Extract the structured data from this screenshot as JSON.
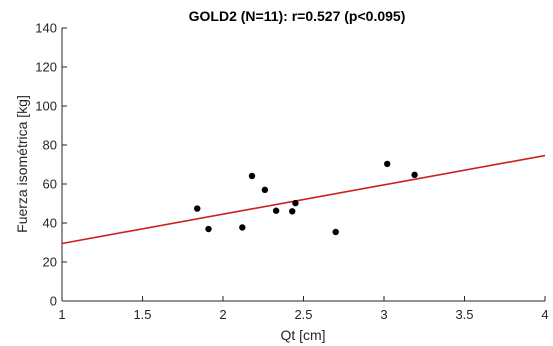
{
  "chart_data": {
    "type": "scatter",
    "title": "GOLD2 (N=11):    r=0.527 (p<0.095)",
    "xlabel": "Qt [cm]",
    "ylabel": "Fuerza isométrica [kg]",
    "xlim": [
      1,
      4
    ],
    "ylim": [
      0,
      140
    ],
    "xticks": [
      1,
      1.5,
      2,
      2.5,
      3,
      3.5,
      4
    ],
    "xtick_labels": [
      "1",
      "1.5",
      "2",
      "2.5",
      "3",
      "3.5",
      "4"
    ],
    "yticks": [
      0,
      20,
      40,
      60,
      80,
      100,
      120,
      140
    ],
    "ytick_labels": [
      "0",
      "20",
      "40",
      "60",
      "80",
      "100",
      "120",
      "140"
    ],
    "grid": false,
    "points": [
      {
        "x": 1.84,
        "y": 47.4
      },
      {
        "x": 1.91,
        "y": 36.9
      },
      {
        "x": 2.12,
        "y": 37.7
      },
      {
        "x": 2.18,
        "y": 64.1
      },
      {
        "x": 2.26,
        "y": 57.0
      },
      {
        "x": 2.33,
        "y": 46.3
      },
      {
        "x": 2.43,
        "y": 46.0
      },
      {
        "x": 2.45,
        "y": 50.2
      },
      {
        "x": 2.7,
        "y": 35.4
      },
      {
        "x": 3.02,
        "y": 70.3
      },
      {
        "x": 3.19,
        "y": 64.7
      }
    ],
    "fit_line": {
      "x": [
        1,
        4
      ],
      "y": [
        29.5,
        74.6
      ]
    },
    "colors": {
      "points": "#000000",
      "fit_line": "#cc1f1f",
      "axes": "#262626"
    }
  }
}
